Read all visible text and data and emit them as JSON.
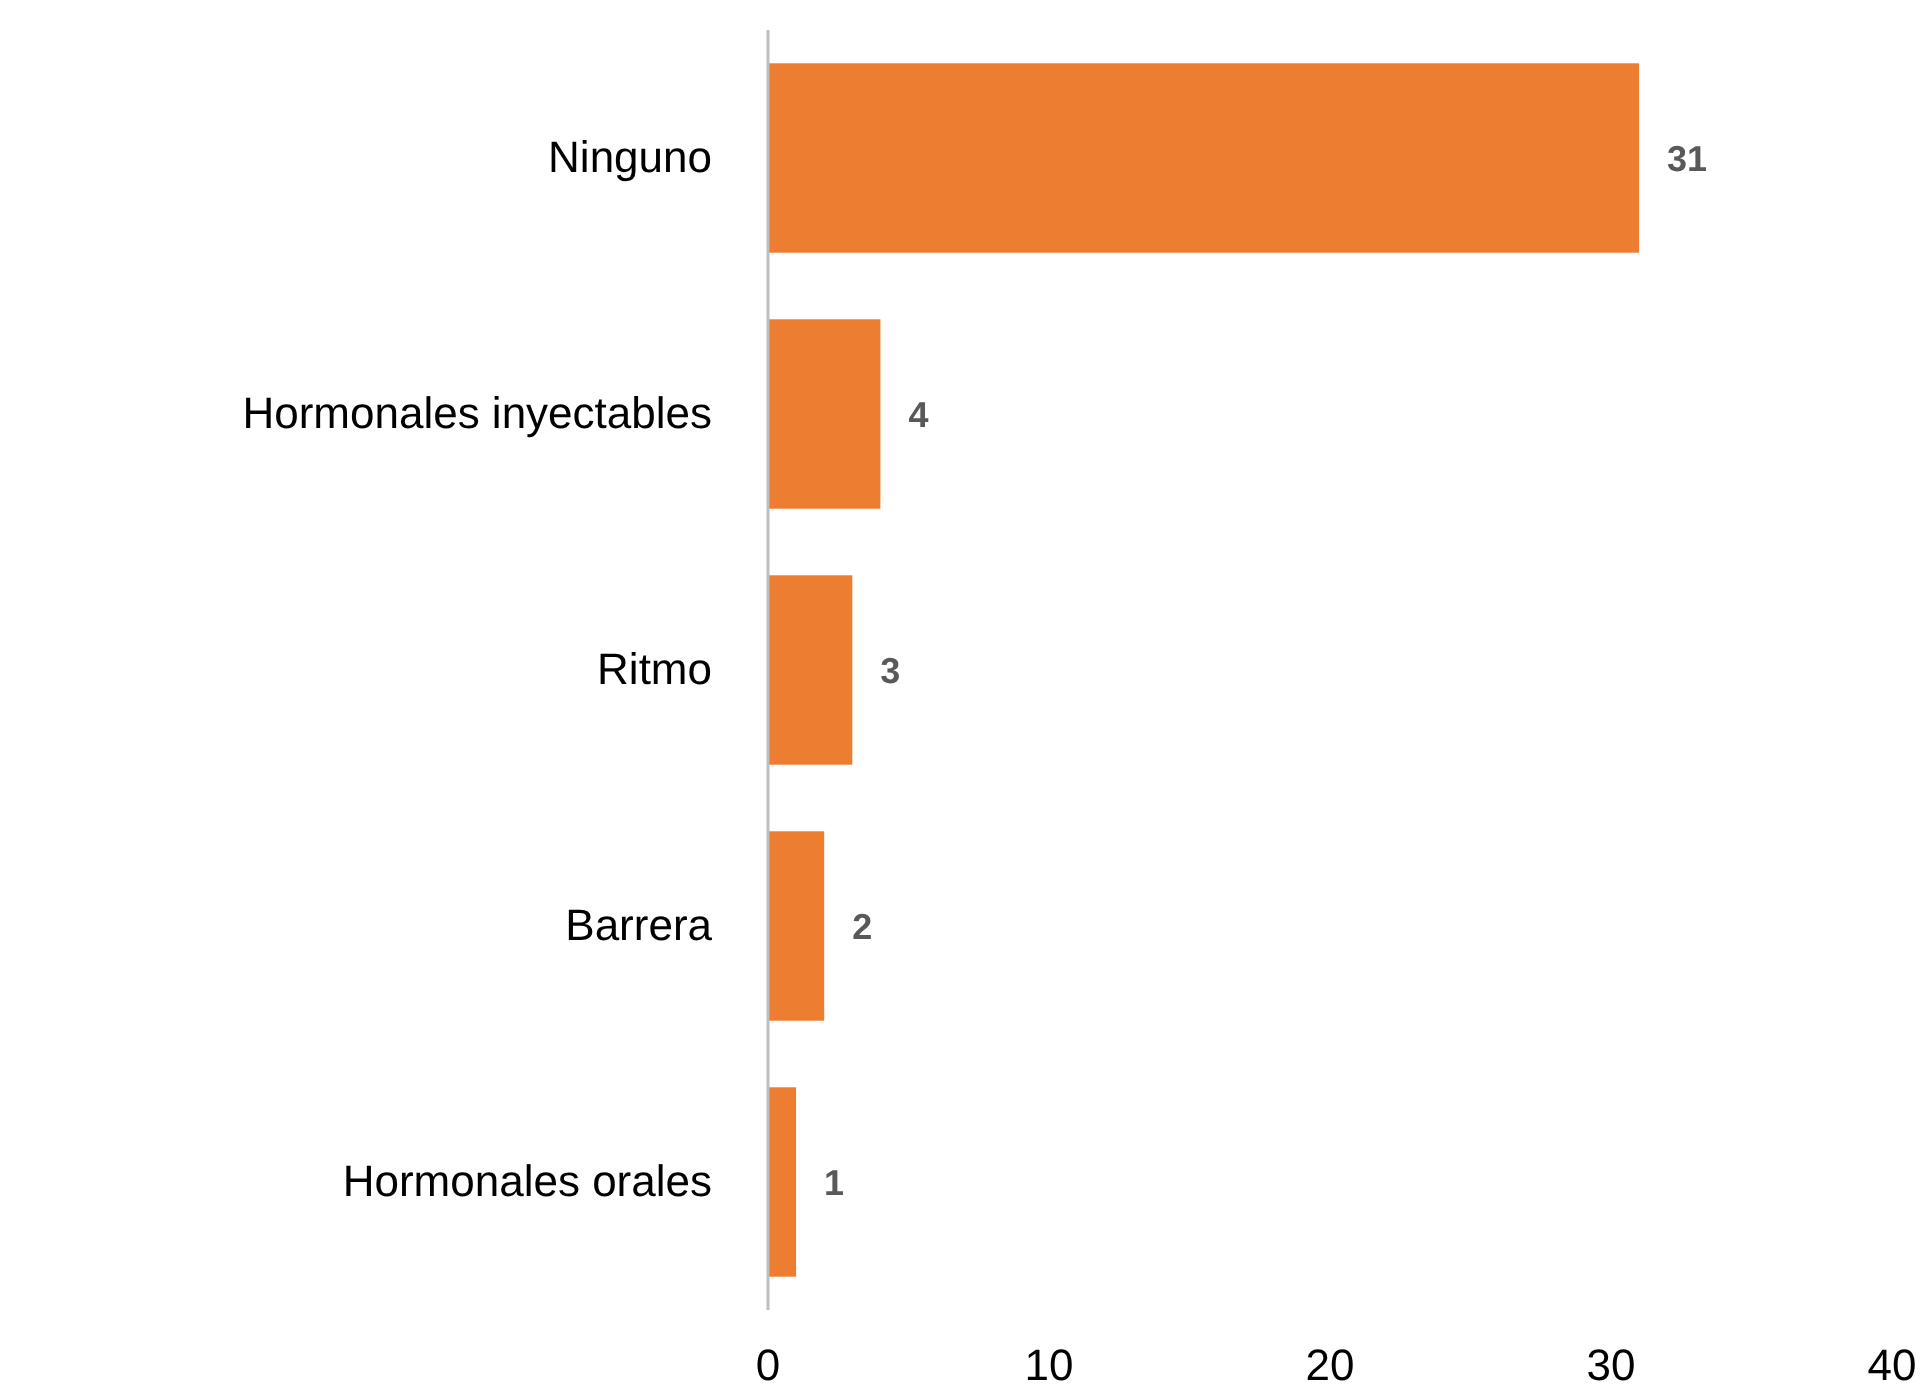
{
  "chart_data": {
    "type": "bar",
    "orientation": "horizontal",
    "categories": [
      "Ninguno",
      "Hormonales inyectables",
      "Ritmo",
      "Barrera",
      "Hormonales orales"
    ],
    "values": [
      31,
      4,
      3,
      2,
      1
    ],
    "color": "#ed7d31",
    "xlim": [
      0,
      40
    ],
    "xticks": [
      0,
      10,
      20,
      30,
      40
    ],
    "grid": false,
    "data_labels": true
  }
}
